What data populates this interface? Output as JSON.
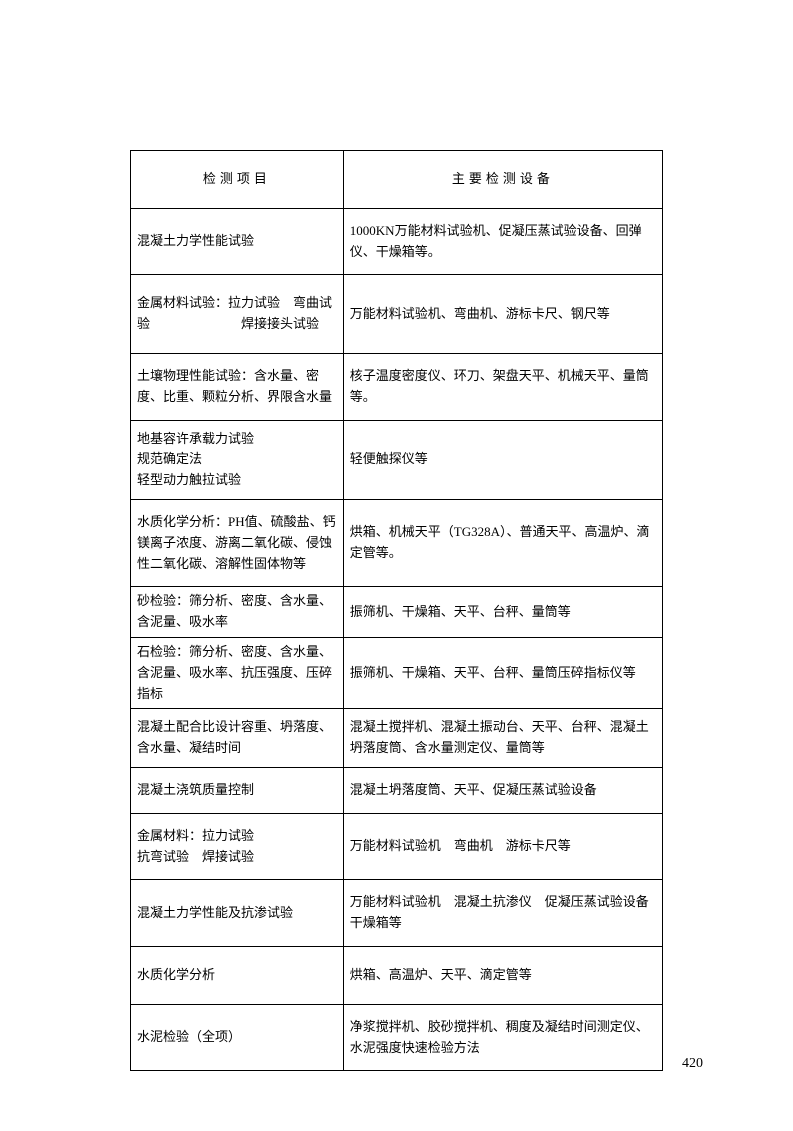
{
  "table": {
    "headers": {
      "col1": "检测项目",
      "col2": "主要检测设备"
    },
    "rows": [
      {
        "col1": "混凝土力学性能试验",
        "col2": "1000KN万能材料试验机、促凝压蒸试验设备、回弹仪、干燥箱等。",
        "class": "med-row"
      },
      {
        "col1": "金属材料试验：拉力试验　弯曲试验　　　　　　　焊接接头试验",
        "col2": "万能材料试验机、弯曲机、游标卡尺、钢尺等",
        "class": "tall-row"
      },
      {
        "col1": "土壤物理性能试验：含水量、密度、比重、颗粒分析、界限含水量",
        "col2": "核子温度密度仪、环刀、架盘天平、机械天平、量筒等。",
        "class": "med-row"
      },
      {
        "col1": "地基容许承载力试验\n规范确定法\n轻型动力触拉试验",
        "col2": "轻便触探仪等",
        "class": ""
      },
      {
        "col1": "水质化学分析：PH值、硫酸盐、钙镁离子浓度、游离二氧化碳、侵蚀性二氧化碳、溶解性固体物等",
        "col2": "烘箱、机械天平（TG328A）、普通天平、高温炉、滴定管等。",
        "class": "med-row"
      },
      {
        "col1": "砂检验：筛分析、密度、含水量、含泥量、吸水率",
        "col2": "振筛机、干燥箱、天平、台秤、量筒等",
        "class": "short-row"
      },
      {
        "col1": "石检验：筛分析、密度、含水量、含泥量、吸水率、抗压强度、压碎指标",
        "col2": "振筛机、干燥箱、天平、台秤、量筒压碎指标仪等",
        "class": "short-row"
      },
      {
        "col1": "混凝土配合比设计容重、坍落度、含水量、凝结时间",
        "col2": "混凝土搅拌机、混凝土振动台、天平、台秤、混凝土坍落度筒、含水量测定仪、量筒等",
        "class": ""
      },
      {
        "col1": "混凝土浇筑质量控制",
        "col2": "混凝土坍落度筒、天平、促凝压蒸试验设备",
        "class": "med-row"
      },
      {
        "col1": "金属材料：拉力试验\n抗弯试验　焊接试验",
        "col2": "万能材料试验机　弯曲机　游标卡尺等",
        "class": "med-row"
      },
      {
        "col1": "混凝土力学性能及抗渗试验",
        "col2": "万能材料试验机　混凝土抗渗仪　促凝压蒸试验设备　干燥箱等",
        "class": "med-row"
      },
      {
        "col1": "水质化学分析",
        "col2": "烘箱、高温炉、天平、滴定管等",
        "class": "tall-row"
      },
      {
        "col1": "水泥检验（全项）",
        "col2": "净浆搅拌机、胶砂搅拌机、稠度及凝结时间测定仪、水泥强度快速检验方法",
        "class": "med-row"
      }
    ]
  },
  "page_number": "420"
}
